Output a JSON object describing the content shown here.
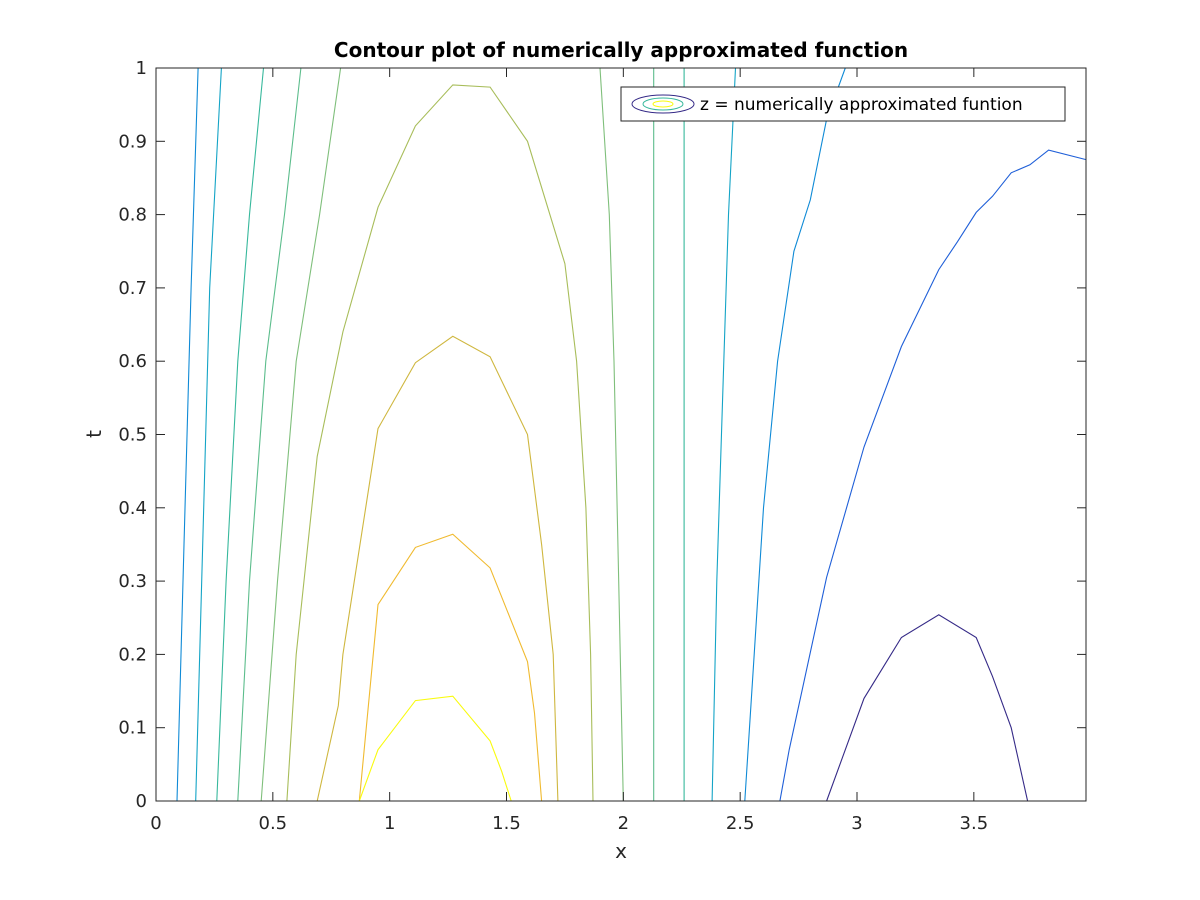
{
  "chart_data": {
    "type": "contour",
    "title": "Contour plot of numerically approximated function",
    "xlabel": "x",
    "ylabel": "t",
    "xlim": [
      0,
      3.98
    ],
    "ylim": [
      0,
      1
    ],
    "xticks": [
      "0",
      "0.5",
      "1",
      "1.5",
      "2",
      "2.5",
      "3",
      "3.5"
    ],
    "yticks": [
      "0",
      "0.1",
      "0.2",
      "0.3",
      "0.4",
      "0.5",
      "0.6",
      "0.7",
      "0.8",
      "0.9",
      "1"
    ],
    "grid": false,
    "legend": {
      "position": "top-right",
      "entries": [
        "z = numerically approximated funtion"
      ]
    },
    "colormap": [
      "#352a87",
      "#1f5fd8",
      "#0f8ad6",
      "#14a4c6",
      "#37b89c",
      "#7fbf7b",
      "#a8bd5a",
      "#cfb73f",
      "#f0ba2f",
      "#f5d62a",
      "#f9fb0e"
    ],
    "contours": [
      {
        "color": "#352a87",
        "points": [
          [
            2.87,
            0
          ],
          [
            3.03,
            0.14
          ],
          [
            3.19,
            0.223
          ],
          [
            3.35,
            0.254
          ],
          [
            3.51,
            0.223
          ],
          [
            3.58,
            0.17
          ],
          [
            3.66,
            0.1
          ],
          [
            3.73,
            0
          ]
        ]
      },
      {
        "color": "#1f5fd8",
        "points": [
          [
            2.67,
            0
          ],
          [
            2.71,
            0.07
          ],
          [
            2.87,
            0.305
          ],
          [
            3.03,
            0.483
          ],
          [
            3.19,
            0.62
          ],
          [
            3.35,
            0.725
          ],
          [
            3.43,
            0.763
          ],
          [
            3.51,
            0.803
          ],
          [
            3.58,
            0.825
          ],
          [
            3.66,
            0.857
          ],
          [
            3.74,
            0.868
          ],
          [
            3.82,
            0.888
          ],
          [
            3.98,
            0.875
          ]
        ]
      },
      {
        "color": "#0f8ad6",
        "points": [
          [
            0.09,
            0
          ],
          [
            0.12,
            0.35
          ],
          [
            0.15,
            0.7
          ],
          [
            0.18,
            1
          ]
        ]
      },
      {
        "color": "#0f8ad6",
        "points": [
          [
            2.52,
            0
          ],
          [
            2.56,
            0.2
          ],
          [
            2.6,
            0.4
          ],
          [
            2.66,
            0.6
          ],
          [
            2.73,
            0.75
          ],
          [
            2.8,
            0.82
          ],
          [
            2.87,
            0.93
          ],
          [
            2.95,
            1
          ]
        ]
      },
      {
        "color": "#14a4c6",
        "points": [
          [
            0.17,
            0
          ],
          [
            0.2,
            0.35
          ],
          [
            0.23,
            0.7
          ],
          [
            0.28,
            1
          ]
        ]
      },
      {
        "color": "#14a4c6",
        "points": [
          [
            2.38,
            0
          ],
          [
            2.4,
            0.3
          ],
          [
            2.43,
            0.6
          ],
          [
            2.45,
            0.8
          ],
          [
            2.48,
            1
          ]
        ]
      },
      {
        "color": "#37b89c",
        "points": [
          [
            0.26,
            0
          ],
          [
            0.3,
            0.3
          ],
          [
            0.35,
            0.6
          ],
          [
            0.4,
            0.8
          ],
          [
            0.46,
            1
          ]
        ]
      },
      {
        "color": "#37b89c",
        "points": [
          [
            2.26,
            0
          ],
          [
            2.26,
            0.5
          ],
          [
            2.26,
            1
          ]
        ]
      },
      {
        "color": "#5cbd8c",
        "points": [
          [
            0.35,
            0
          ],
          [
            0.4,
            0.3
          ],
          [
            0.47,
            0.6
          ],
          [
            0.55,
            0.8
          ],
          [
            0.62,
            1
          ]
        ]
      },
      {
        "color": "#5cbd8c",
        "points": [
          [
            2.13,
            0
          ],
          [
            2.13,
            0.5
          ],
          [
            2.13,
            1
          ]
        ]
      },
      {
        "color": "#7fbf7b",
        "points": [
          [
            0.45,
            0
          ],
          [
            0.52,
            0.3
          ],
          [
            0.6,
            0.6
          ],
          [
            0.7,
            0.8
          ],
          [
            0.79,
            1
          ]
        ]
      },
      {
        "color": "#7fbf7b",
        "points": [
          [
            2.0,
            0
          ],
          [
            1.98,
            0.3
          ],
          [
            1.96,
            0.6
          ],
          [
            1.94,
            0.8
          ],
          [
            1.9,
            1
          ]
        ]
      },
      {
        "color": "#a8bd5a",
        "points": [
          [
            0.56,
            0
          ],
          [
            0.6,
            0.2
          ],
          [
            0.69,
            0.47
          ],
          [
            0.8,
            0.64
          ],
          [
            0.95,
            0.81
          ],
          [
            1.11,
            0.921
          ],
          [
            1.27,
            0.977
          ],
          [
            1.43,
            0.974
          ],
          [
            1.59,
            0.9
          ],
          [
            1.75,
            0.733
          ],
          [
            1.8,
            0.6
          ],
          [
            1.84,
            0.4
          ],
          [
            1.86,
            0.2
          ],
          [
            1.87,
            0
          ]
        ]
      },
      {
        "color": "#cfb73f",
        "points": [
          [
            0.69,
            0
          ],
          [
            0.78,
            0.13
          ],
          [
            0.8,
            0.2
          ],
          [
            0.95,
            0.508
          ],
          [
            1.11,
            0.598
          ],
          [
            1.27,
            0.634
          ],
          [
            1.43,
            0.606
          ],
          [
            1.59,
            0.5
          ],
          [
            1.65,
            0.35
          ],
          [
            1.7,
            0.2
          ],
          [
            1.72,
            0
          ]
        ]
      },
      {
        "color": "#f0ba2f",
        "points": [
          [
            0.87,
            0
          ],
          [
            0.95,
            0.268
          ],
          [
            1.11,
            0.346
          ],
          [
            1.27,
            0.364
          ],
          [
            1.43,
            0.318
          ],
          [
            1.59,
            0.19
          ],
          [
            1.62,
            0.12
          ],
          [
            1.65,
            0
          ]
        ]
      },
      {
        "color": "#f9fb0e",
        "points": [
          [
            0.87,
            0
          ],
          [
            0.95,
            0.07
          ],
          [
            1.11,
            0.137
          ],
          [
            1.27,
            0.143
          ],
          [
            1.43,
            0.082
          ],
          [
            1.48,
            0.04
          ],
          [
            1.52,
            0
          ]
        ]
      }
    ]
  }
}
